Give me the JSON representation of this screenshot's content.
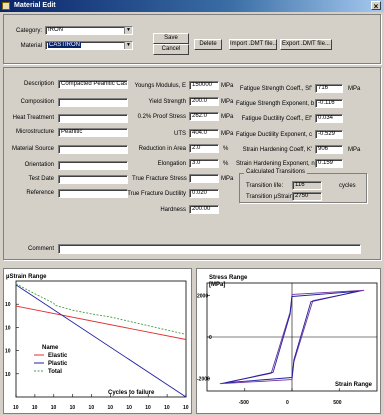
{
  "window": {
    "title": "Material Edit",
    "close_glyph": "×"
  },
  "top": {
    "category_label": "Category:",
    "category_value": "IRON",
    "material_label": "Material",
    "material_value": "CASTIRON",
    "save_label": "Save",
    "cancel_label": "Cancel",
    "delete_label": "Delete",
    "import_label": "Import .DMT file...",
    "export_label": "Export .DMT file..."
  },
  "left_fields": [
    {
      "label": "Description",
      "value": "Compacted Pearlitic Cast"
    },
    {
      "label": "Composition",
      "value": ""
    },
    {
      "label": "Heat Treatment",
      "value": ""
    },
    {
      "label": "Microstructure",
      "value": "Pearlitic"
    },
    {
      "label": "Material Source",
      "value": ""
    },
    {
      "label": "Orientation",
      "value": ""
    },
    {
      "label": "Test Date",
      "value": ""
    },
    {
      "label": "Reference",
      "value": ""
    }
  ],
  "middle_fields": [
    {
      "label": "Youngs Modulus, E",
      "value": "150000",
      "unit": "MPa"
    },
    {
      "label": "Yield Strength",
      "value": "200.0",
      "unit": "MPa"
    },
    {
      "label": "0.2% Proof Stress",
      "value": "262.0",
      "unit": "MPa"
    },
    {
      "label": "UTS",
      "value": "404.0",
      "unit": "MPa"
    },
    {
      "label": "Reduction in Area",
      "value": "2.0",
      "unit": "%"
    },
    {
      "label": "Elongation",
      "value": "3.0",
      "unit": "%"
    },
    {
      "label": "True Fracture Stress",
      "value": "",
      "unit": "MPa"
    },
    {
      "label": "True Fracture Ductility",
      "value": "0.020",
      "unit": ""
    },
    {
      "label": "Hardness",
      "value": "200.00",
      "unit": ""
    }
  ],
  "right_fields": [
    {
      "label": "Fatigue Strength Coeff., Sf'",
      "value": "716",
      "unit": "MPa"
    },
    {
      "label": "Fatigue Strength Exponent, b",
      "value": "-0.116",
      "unit": ""
    },
    {
      "label": "Fatigue Ductility Coeff., Ef'",
      "value": "0.034",
      "unit": ""
    },
    {
      "label": "Fatigue Ductility Exponent, c",
      "value": "-0.529",
      "unit": ""
    },
    {
      "label": "Strain Hardening Coeff, K'",
      "value": "906",
      "unit": "MPa"
    },
    {
      "label": "Strain Hardening Exponent, n'",
      "value": "0.159",
      "unit": ""
    }
  ],
  "calc": {
    "title": "Calculated Transitions",
    "life_label": "Transition life:",
    "life_value": "116",
    "life_unit": "cycles",
    "strain_label": "Transition µStrain:",
    "strain_value": "2750"
  },
  "comment": {
    "label": "Comment",
    "value": ""
  },
  "chart_data": [
    {
      "type": "line",
      "title": "",
      "ylabel": "µStrain Range",
      "xlabel": "Cycles to failure",
      "xscale": "log",
      "yscale": "log",
      "x_tick_labels": [
        "10",
        "10",
        "10",
        "10",
        "10",
        "10",
        "10",
        "10",
        "10",
        "10"
      ],
      "y_tick_labels": [
        "10",
        "10",
        "10",
        "10"
      ],
      "legend": {
        "title": "Name",
        "placement": "bottom-left"
      },
      "series": [
        {
          "name": "Elastic",
          "color": "#e03030",
          "x": [
            1,
            1000000000
          ],
          "y": [
            8300,
            300
          ]
        },
        {
          "name": "Plastic",
          "color": "#2020a0",
          "x": [
            1,
            1000000000
          ],
          "y": [
            68000,
            1
          ]
        },
        {
          "name": "Total",
          "color": "#40a040",
          "x": [
            1,
            10,
            100,
            116,
            1000,
            10000,
            100000,
            1000000000
          ],
          "y": [
            76000,
            28000,
            11000,
            9000,
            5500,
            3800,
            2800,
            500
          ]
        }
      ]
    },
    {
      "type": "line",
      "title": "",
      "ylabel": "Stress Range\n[MPa]",
      "xlabel": "Strain Range",
      "x_tick_labels": [
        "-500",
        "0",
        "500"
      ],
      "y_tick_labels": [
        "2000",
        "0",
        "-2000"
      ],
      "xlim": [
        -900,
        900
      ],
      "ylim": [
        -2600,
        2600
      ],
      "series": [
        {
          "name": "",
          "color": "#7030a0",
          "shape": "hysteresis-loop",
          "x": [
            -760,
            0,
            20,
            220,
            760,
            0,
            -20,
            -220,
            -760
          ],
          "y": [
            -2250,
            -2050,
            -1200,
            1750,
            2250,
            2050,
            1200,
            -1750,
            -2250
          ]
        },
        {
          "name": "",
          "color": "#2020a0",
          "shape": "hysteresis-loop",
          "x": [
            -700,
            0,
            20,
            200,
            700,
            0,
            -20,
            -200,
            -700
          ],
          "y": [
            -2200,
            -1950,
            -1100,
            1700,
            2200,
            1950,
            1100,
            -1700,
            -2200
          ]
        }
      ]
    }
  ]
}
